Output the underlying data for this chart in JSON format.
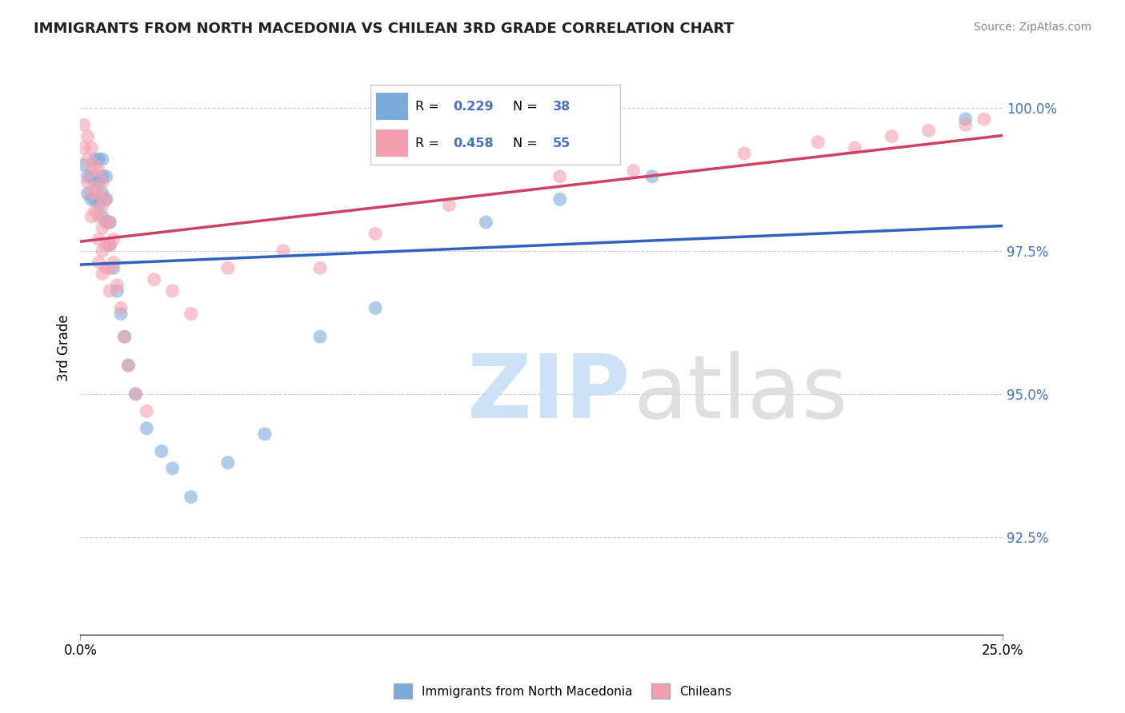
{
  "title": "IMMIGRANTS FROM NORTH MACEDONIA VS CHILEAN 3RD GRADE CORRELATION CHART",
  "source": "Source: ZipAtlas.com",
  "ylabel": "3rd Grade",
  "xmin": 0.0,
  "xmax": 0.25,
  "ymin": 0.908,
  "ymax": 1.008,
  "yticks": [
    0.925,
    0.95,
    0.975,
    1.0
  ],
  "ytick_labels": [
    "92.5%",
    "95.0%",
    "97.5%",
    "100.0%"
  ],
  "xticks": [
    0.0,
    0.25
  ],
  "xtick_labels": [
    "0.0%",
    "25.0%"
  ],
  "blue_R": 0.229,
  "blue_N": 38,
  "pink_R": 0.458,
  "pink_N": 55,
  "blue_color": "#7aabdb",
  "pink_color": "#f4a0b0",
  "blue_line_color": "#3060c0",
  "pink_line_color": "#d04060",
  "legend_label_blue": "Immigrants from North Macedonia",
  "legend_label_pink": "Chileans",
  "blue_x": [
    0.001,
    0.002,
    0.002,
    0.003,
    0.003,
    0.004,
    0.004,
    0.004,
    0.005,
    0.005,
    0.005,
    0.006,
    0.006,
    0.006,
    0.006,
    0.007,
    0.007,
    0.007,
    0.008,
    0.008,
    0.009,
    0.01,
    0.011,
    0.012,
    0.013,
    0.015,
    0.018,
    0.022,
    0.025,
    0.03,
    0.04,
    0.05,
    0.065,
    0.08,
    0.11,
    0.13,
    0.155,
    0.24
  ],
  "blue_y": [
    0.99,
    0.988,
    0.985,
    0.984,
    0.988,
    0.984,
    0.987,
    0.991,
    0.983,
    0.987,
    0.991,
    0.981,
    0.985,
    0.988,
    0.991,
    0.98,
    0.984,
    0.988,
    0.976,
    0.98,
    0.972,
    0.968,
    0.964,
    0.96,
    0.955,
    0.95,
    0.944,
    0.94,
    0.937,
    0.932,
    0.938,
    0.943,
    0.96,
    0.965,
    0.98,
    0.984,
    0.988,
    0.998
  ],
  "pink_x": [
    0.001,
    0.001,
    0.002,
    0.002,
    0.002,
    0.003,
    0.003,
    0.003,
    0.003,
    0.004,
    0.004,
    0.004,
    0.005,
    0.005,
    0.005,
    0.005,
    0.005,
    0.006,
    0.006,
    0.006,
    0.006,
    0.006,
    0.007,
    0.007,
    0.007,
    0.007,
    0.008,
    0.008,
    0.008,
    0.008,
    0.009,
    0.009,
    0.01,
    0.011,
    0.012,
    0.013,
    0.015,
    0.018,
    0.02,
    0.025,
    0.03,
    0.04,
    0.055,
    0.065,
    0.08,
    0.1,
    0.13,
    0.15,
    0.18,
    0.2,
    0.21,
    0.22,
    0.23,
    0.24,
    0.245
  ],
  "pink_y": [
    0.997,
    0.993,
    0.995,
    0.991,
    0.987,
    0.993,
    0.989,
    0.985,
    0.981,
    0.99,
    0.986,
    0.982,
    0.989,
    0.985,
    0.981,
    0.977,
    0.973,
    0.987,
    0.983,
    0.979,
    0.975,
    0.971,
    0.984,
    0.98,
    0.976,
    0.972,
    0.98,
    0.976,
    0.972,
    0.968,
    0.977,
    0.973,
    0.969,
    0.965,
    0.96,
    0.955,
    0.95,
    0.947,
    0.97,
    0.968,
    0.964,
    0.972,
    0.975,
    0.972,
    0.978,
    0.983,
    0.988,
    0.989,
    0.992,
    0.994,
    0.993,
    0.995,
    0.996,
    0.997,
    0.998
  ]
}
